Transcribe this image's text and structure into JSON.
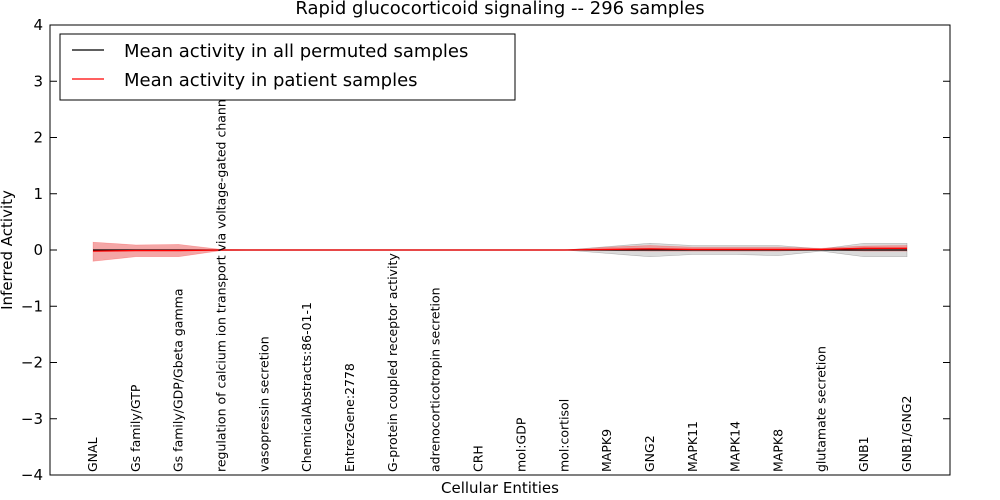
{
  "chart_data": {
    "type": "line",
    "title": "Rapid glucocorticoid signaling -- 296 samples",
    "xlabel": "Cellular Entities",
    "ylabel": "Inferred Activity",
    "ylim": [
      -4,
      4
    ],
    "yticks": [
      {
        "value": 4,
        "label": "4"
      },
      {
        "value": 3,
        "label": "3"
      },
      {
        "value": 2,
        "label": "2"
      },
      {
        "value": 1,
        "label": "1"
      },
      {
        "value": 0,
        "label": "0"
      },
      {
        "value": -1,
        "label": "−1"
      },
      {
        "value": -2,
        "label": "−2"
      },
      {
        "value": -3,
        "label": "−3"
      },
      {
        "value": -4,
        "label": "−4"
      }
    ],
    "categories": [
      "GNAL",
      "Gs family/GTP",
      "Gs family/GDP/Gbeta gamma",
      "regulation of calcium ion transport via voltage-gated channel activity",
      "vasopressin secretion",
      "ChemicalAbstracts:86-01-1",
      "EntrezGene:2778",
      "G-protein coupled receptor activity",
      "adrenocorticotropin secretion",
      "CRH",
      "mol:GDP",
      "mol:cortisol",
      "MAPK9",
      "GNG2",
      "MAPK11",
      "MAPK14",
      "MAPK8",
      "glutamate secretion",
      "GNB1",
      "GNB1/GNG2"
    ],
    "legend_position": "top-left",
    "series": [
      {
        "name": "Mean activity in all permuted samples",
        "color": "#000000",
        "band_color": "#bbbbbb",
        "values": [
          0,
          0,
          0,
          0,
          0,
          0,
          0,
          0,
          0,
          0,
          0,
          0,
          0,
          0,
          0,
          0,
          0,
          0,
          0,
          0
        ],
        "lower": [
          0,
          0,
          0,
          0,
          0,
          0,
          0,
          0,
          0,
          0,
          0,
          0,
          -0.06,
          -0.12,
          -0.08,
          -0.08,
          -0.1,
          -0.02,
          -0.12,
          -0.12
        ],
        "upper": [
          0,
          0,
          0,
          0,
          0,
          0,
          0,
          0,
          0,
          0,
          0,
          0,
          0.06,
          0.12,
          0.08,
          0.08,
          0.08,
          0.02,
          0.12,
          0.12
        ]
      },
      {
        "name": "Mean activity in patient samples",
        "color": "#ff0000",
        "band_color": "#f08080",
        "values": [
          -0.02,
          -0.01,
          -0.01,
          0,
          0,
          0,
          0,
          0,
          0,
          0,
          0,
          0,
          0.01,
          0.02,
          0.01,
          0.01,
          0.01,
          0.01,
          0.03,
          0.03
        ],
        "lower": [
          -0.2,
          -0.12,
          -0.12,
          -0.01,
          0,
          0,
          0,
          0,
          0,
          0,
          0,
          0,
          -0.01,
          -0.02,
          -0.02,
          -0.02,
          -0.02,
          0,
          -0.02,
          -0.02
        ],
        "upper": [
          0.14,
          0.09,
          0.1,
          0.01,
          0,
          0,
          0,
          0,
          0,
          0,
          0,
          0,
          0.05,
          0.08,
          0.05,
          0.05,
          0.05,
          0.03,
          0.07,
          0.08
        ]
      }
    ]
  }
}
